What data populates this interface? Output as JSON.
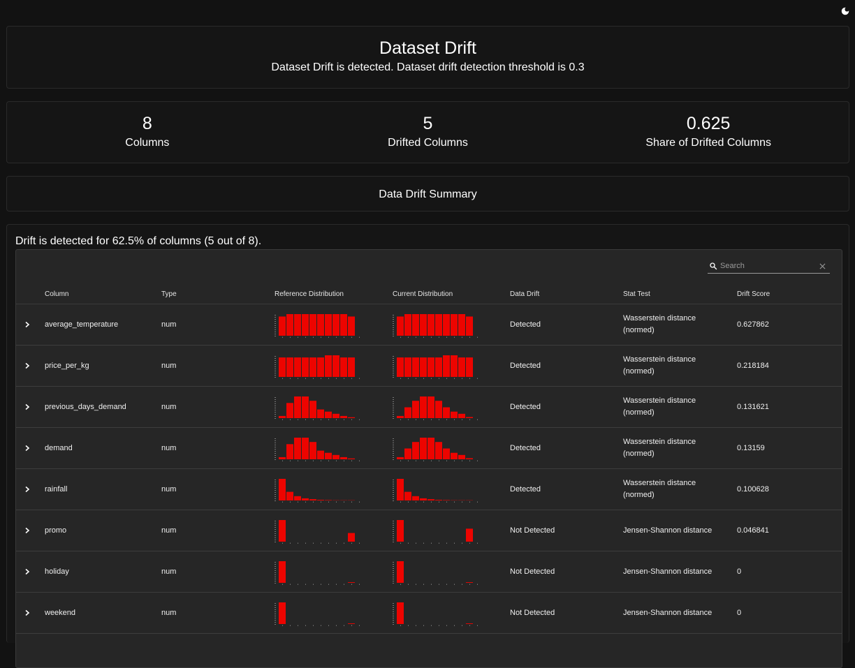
{
  "header": {
    "title": "Dataset Drift",
    "subtitle": "Dataset Drift is detected. Dataset drift detection threshold is 0.3"
  },
  "counters": [
    {
      "value": "8",
      "label": "Columns"
    },
    {
      "value": "5",
      "label": "Drifted Columns"
    },
    {
      "value": "0.625",
      "label": "Share of Drifted Columns"
    }
  ],
  "summary": {
    "title": "Data Drift Summary"
  },
  "table": {
    "note": "Drift is detected for 62.5% of columns (5 out of 8).",
    "search_placeholder": "Search",
    "columns": [
      "Column",
      "Type",
      "Reference Distribution",
      "Current Distribution",
      "Data Drift",
      "Stat Test",
      "Drift Score"
    ],
    "bar_color": "#ed0400",
    "rows": [
      {
        "name": "average_temperature",
        "type": "num",
        "drift": "Detected",
        "stat": "Wasserstein distance (normed)",
        "score": "0.627862",
        "ref": [
          8,
          9,
          9,
          9,
          9,
          9,
          9,
          9,
          9,
          8
        ],
        "cur": [
          8,
          9,
          9,
          9,
          9,
          9,
          9,
          9,
          9,
          8
        ]
      },
      {
        "name": "price_per_kg",
        "type": "num",
        "drift": "Detected",
        "stat": "Wasserstein distance (normed)",
        "score": "0.218184",
        "ref": [
          9,
          9,
          9,
          9,
          9,
          9,
          10,
          10,
          9,
          9
        ],
        "cur": [
          9,
          9,
          9,
          9,
          9,
          9,
          10,
          10,
          9,
          9
        ]
      },
      {
        "name": "previous_days_demand",
        "type": "num",
        "drift": "Detected",
        "stat": "Wasserstein distance (normed)",
        "score": "0.131621",
        "ref": [
          1,
          7,
          10,
          10,
          8,
          4,
          3,
          2,
          1,
          0.4
        ],
        "cur": [
          1,
          5,
          8,
          10,
          10,
          8,
          5,
          3,
          2,
          0.5
        ]
      },
      {
        "name": "demand",
        "type": "num",
        "drift": "Detected",
        "stat": "Wasserstein distance (normed)",
        "score": "0.13159",
        "ref": [
          1,
          7,
          10,
          10,
          8,
          4,
          3,
          2,
          1,
          0.4
        ],
        "cur": [
          1,
          5,
          8,
          10,
          10,
          8,
          5,
          3,
          2,
          0.5
        ]
      },
      {
        "name": "rainfall",
        "type": "num",
        "drift": "Detected",
        "stat": "Wasserstein distance (normed)",
        "score": "0.100628",
        "ref": [
          10,
          4,
          2,
          1,
          0.6,
          0.3,
          0.2,
          0.1,
          0.1,
          0.1
        ],
        "cur": [
          10,
          4,
          2,
          1,
          0.6,
          0.3,
          0.2,
          0.1,
          0.1,
          0.1
        ]
      },
      {
        "name": "promo",
        "type": "num",
        "drift": "Not Detected",
        "stat": "Jensen-Shannon distance",
        "score": "0.046841",
        "ref": [
          10,
          0,
          0,
          0,
          0,
          0,
          0,
          0,
          0,
          4
        ],
        "cur": [
          10,
          0,
          0,
          0,
          0,
          0,
          0,
          0,
          0,
          6
        ]
      },
      {
        "name": "holiday",
        "type": "num",
        "drift": "Not Detected",
        "stat": "Jensen-Shannon distance",
        "score": "0",
        "ref": [
          10,
          0,
          0,
          0,
          0,
          0,
          0,
          0,
          0,
          0.3
        ],
        "cur": [
          10,
          0,
          0,
          0,
          0,
          0,
          0,
          0,
          0,
          0.3
        ]
      },
      {
        "name": "weekend",
        "type": "num",
        "drift": "Not Detected",
        "stat": "Jensen-Shannon distance",
        "score": "0",
        "ref": [
          10,
          0,
          0,
          0,
          0,
          0,
          0,
          0,
          0,
          0.3
        ],
        "cur": [
          10,
          0,
          0,
          0,
          0,
          0,
          0,
          0,
          0,
          0.3
        ]
      }
    ]
  }
}
